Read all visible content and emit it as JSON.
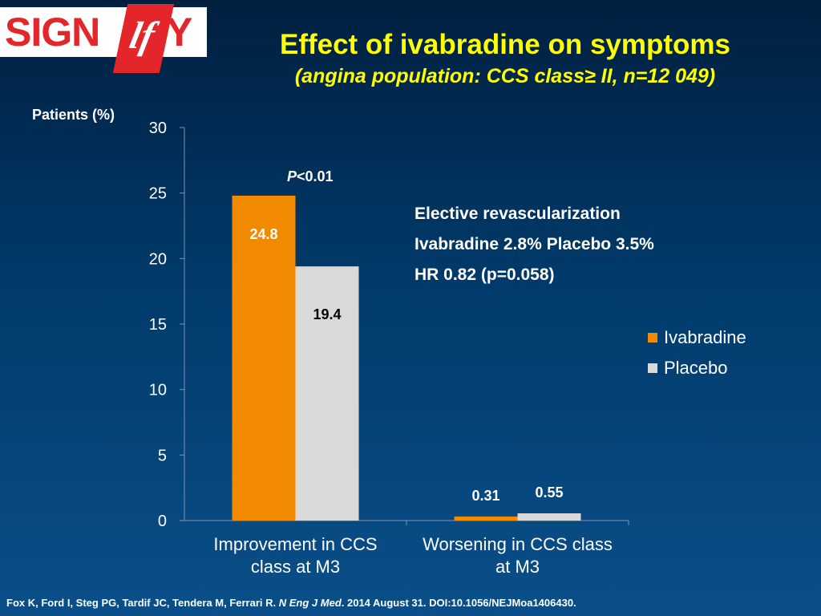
{
  "logo": {
    "left": "SIGN",
    "mark": "lf",
    "right": "Y"
  },
  "title": "Effect of ivabradine on symptoms",
  "subtitle": "(angina population: CCS  class≥ II, n=12 049)",
  "info": {
    "line1": "Elective revascularization",
    "line2": "Ivabradine 2.8%  Placebo 3.5%",
    "line3": "HR 0.82 (p=0.058)"
  },
  "p_value": {
    "italic": "P",
    "rest": "<0.01"
  },
  "footer": {
    "authors": "Fox K, Ford I, Steg PG, Tardif JC, Tendera M, Ferrari R. ",
    "journal": "N Eng J Med",
    "rest": ". 2014 August 31. DOI:10.1056/NEJMoa1406430."
  },
  "colors": {
    "ivabradine": "#f28a00",
    "placebo": "#d9d9d9",
    "axis": "#7f93b0",
    "tick_text": "#ffffff"
  },
  "chart_data": {
    "type": "bar",
    "ylabel": "Patients (%)",
    "ylim": [
      0,
      30
    ],
    "yticks": [
      "0",
      "5",
      "10",
      "15",
      "20",
      "25",
      "30"
    ],
    "categories": [
      "Improvement in CCS class at M3",
      "Worsening in CCS class at M3"
    ],
    "category_lines": [
      [
        "Improvement in CCS",
        "class at M3"
      ],
      [
        "Worsening in CCS class",
        "at M3"
      ]
    ],
    "series": [
      {
        "name": "Ivabradine",
        "values": [
          24.8,
          0.31
        ],
        "labels": [
          "24.8",
          "0.31"
        ]
      },
      {
        "name": "Placebo",
        "values": [
          19.4,
          0.55
        ],
        "labels": [
          "19.4",
          "0.55"
        ]
      }
    ],
    "legend": "right"
  }
}
